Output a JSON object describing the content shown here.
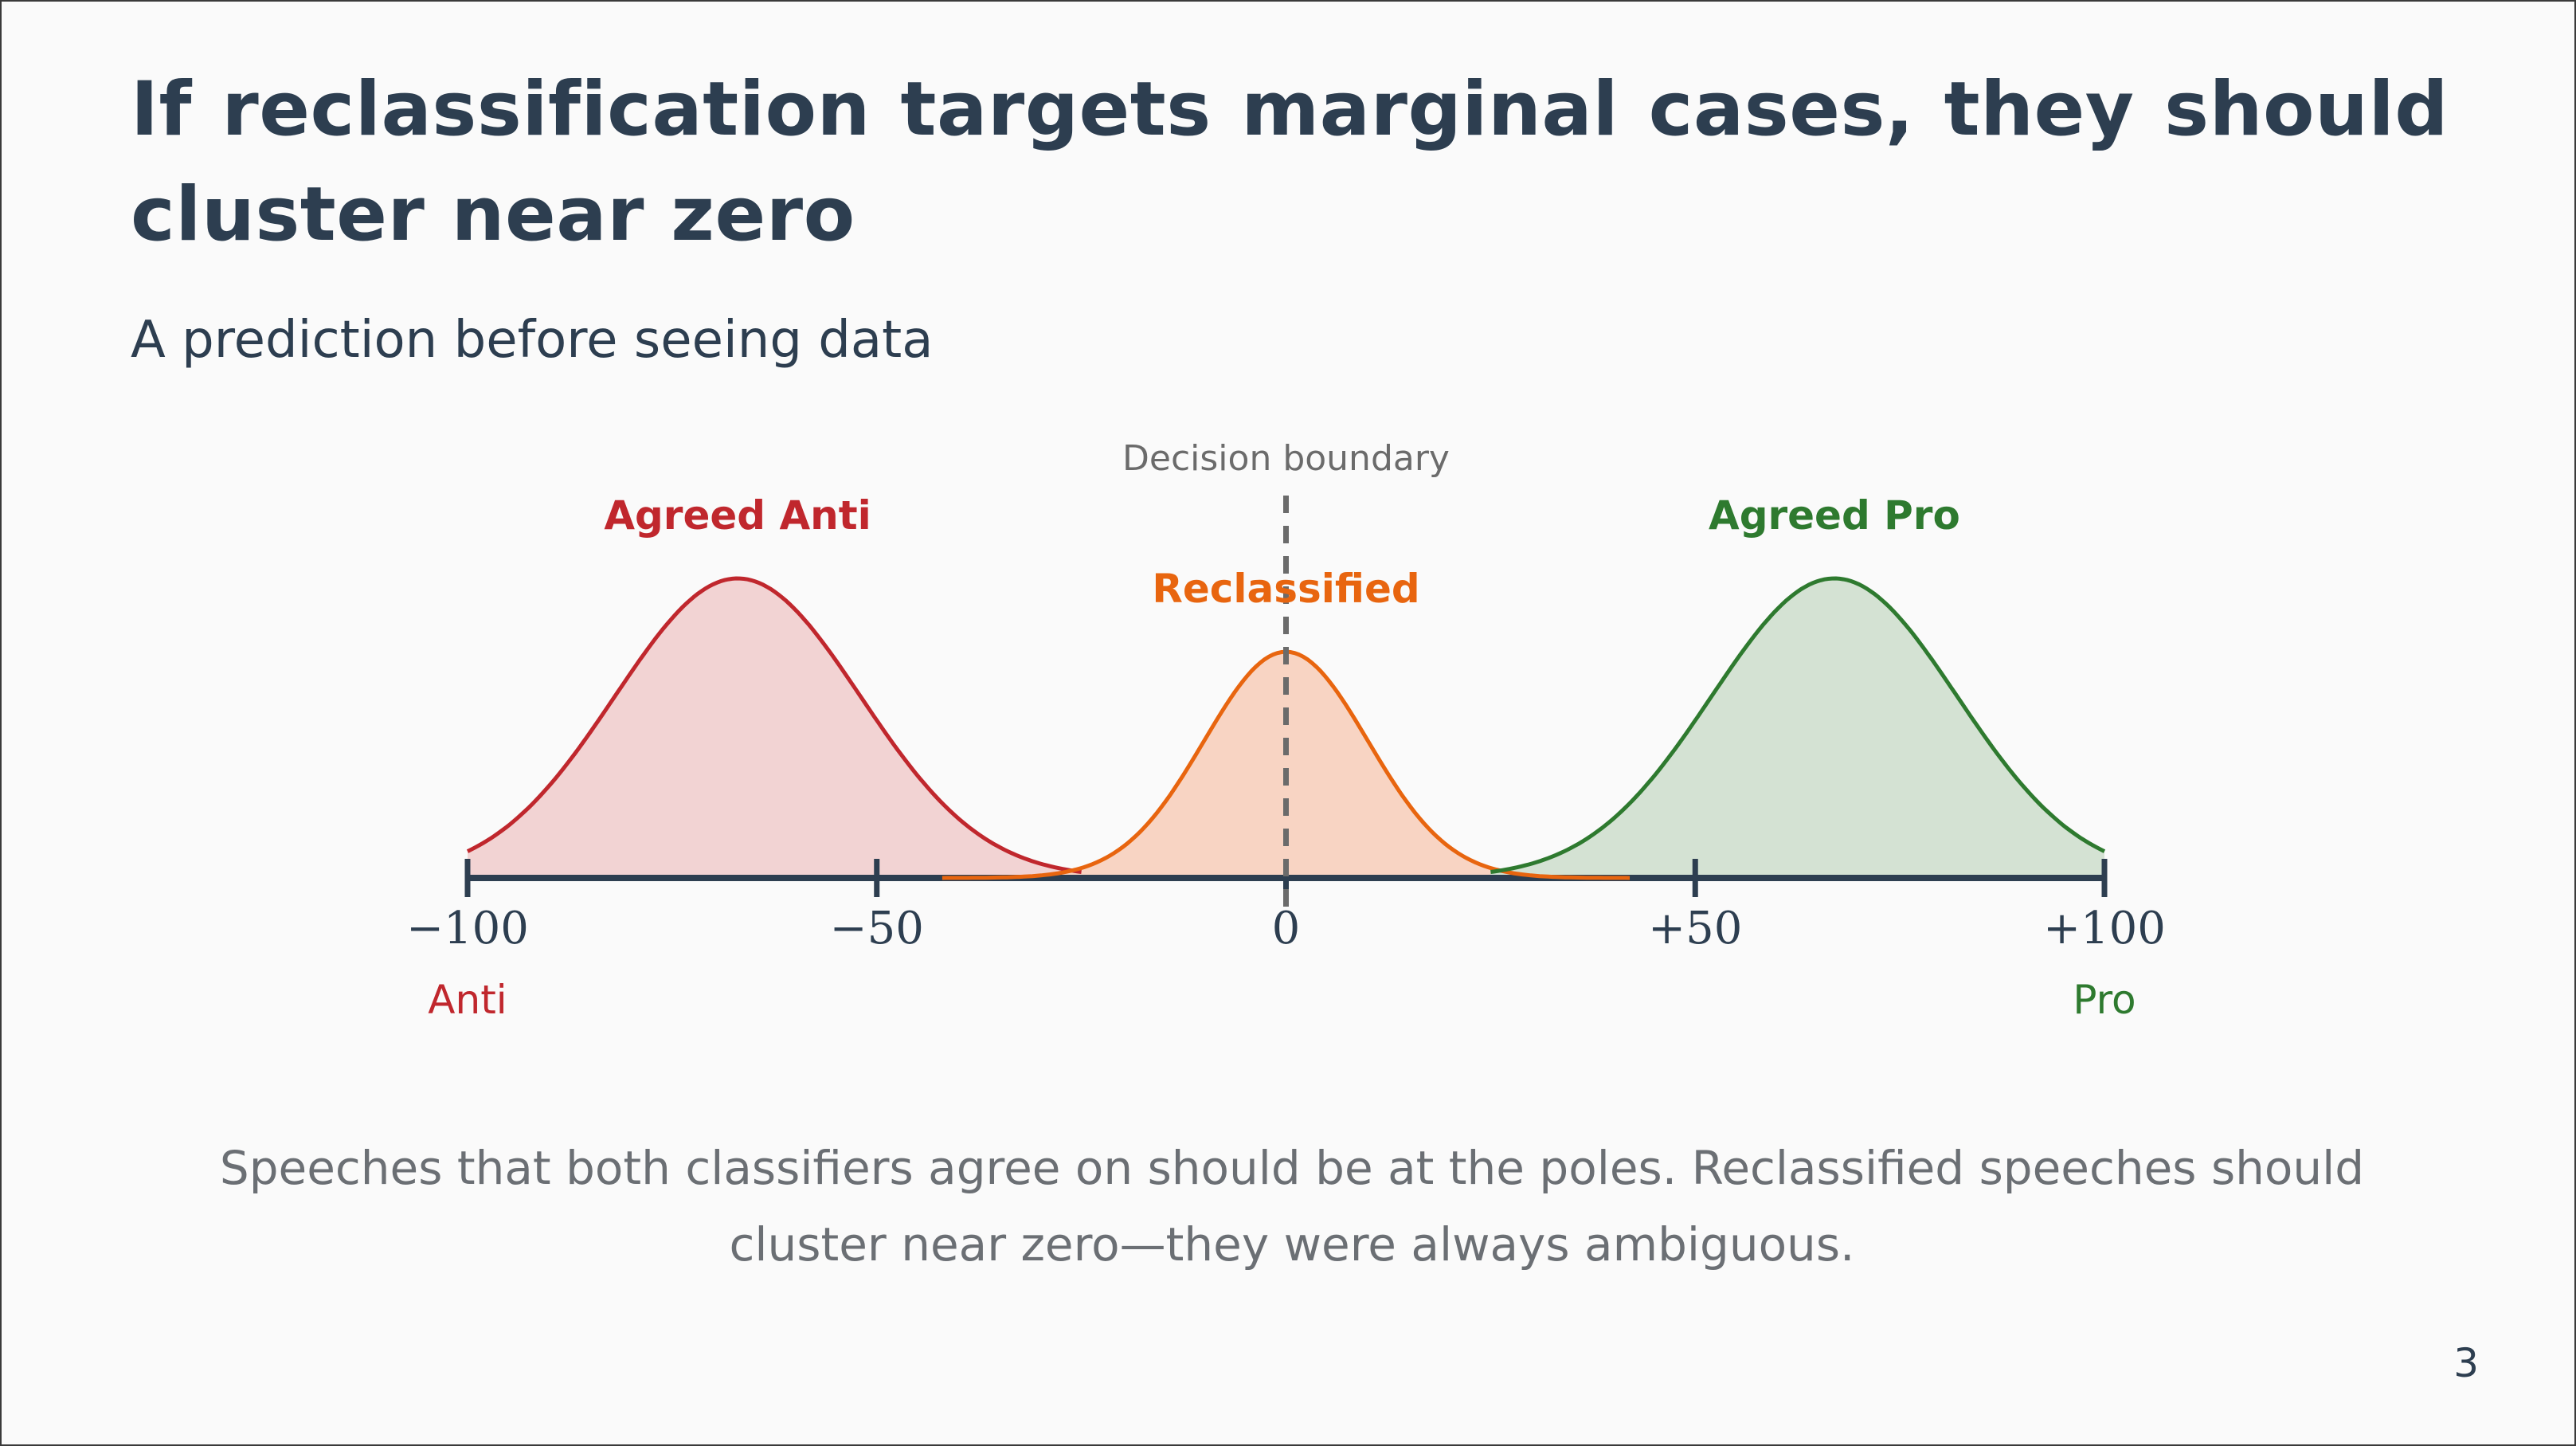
{
  "slide": {
    "title": "If reclassification targets marginal cases, they should cluster near zero",
    "subtitle": "A prediction before seeing data",
    "caption": "Speeches that both classifiers agree on should be at the poles. Reclassified speeches should cluster near zero—they were always ambiguous.",
    "page_number": "3"
  },
  "diagram": {
    "boundary_label": "Decision boundary",
    "ticks": [
      {
        "value": -100,
        "label": "−100"
      },
      {
        "value": -50,
        "label": "−50"
      },
      {
        "value": 0,
        "label": "0"
      },
      {
        "value": 50,
        "label": "+50"
      },
      {
        "value": 100,
        "label": "+100"
      }
    ],
    "pole_labels": {
      "anti": "Anti",
      "pro": "Pro"
    },
    "distributions": [
      {
        "name": "Agreed Anti",
        "center": -67,
        "spread": 15,
        "extent": [
          -100,
          -25
        ],
        "relative_height": 1.0,
        "color": "#c0272d",
        "fill": "#f2d3d3"
      },
      {
        "name": "Reclassified",
        "center": 0,
        "spread": 10,
        "extent": [
          -42,
          42
        ],
        "relative_height": 0.755,
        "color": "#e8650f",
        "fill": "#f8d4c3"
      },
      {
        "name": "Agreed Pro",
        "center": 67,
        "spread": 15,
        "extent": [
          25,
          100
        ],
        "relative_height": 1.0,
        "color": "#2e7a2f",
        "fill": "#d4e2d3"
      }
    ],
    "colors": {
      "axis": "#2d3e50",
      "boundary": "#6b6b6b"
    }
  }
}
